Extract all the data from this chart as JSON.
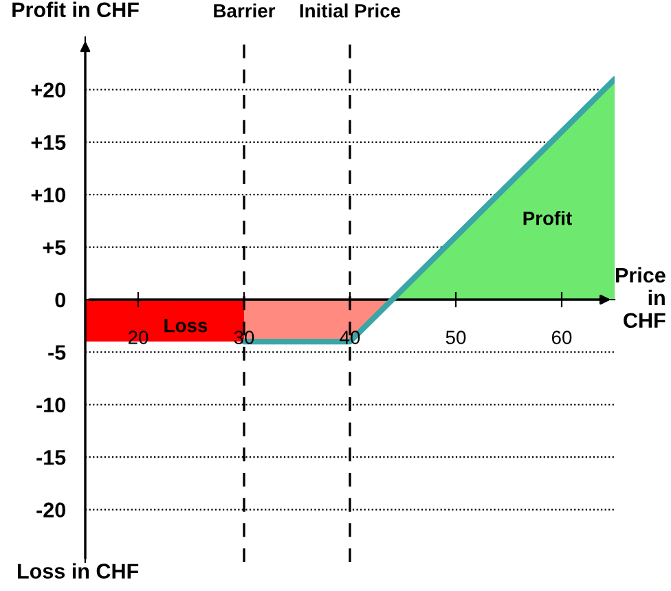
{
  "chart_data": {
    "type": "line",
    "ylabel": "Profit in CHF",
    "xlabel": "Price\nin\nCHF",
    "xlim": [
      15,
      65
    ],
    "ylim": [
      -25,
      25
    ],
    "xticks": [
      20,
      30,
      40,
      50,
      60
    ],
    "yticks": [
      {
        "value": -20,
        "label": "-20"
      },
      {
        "value": -15,
        "label": "-15"
      },
      {
        "value": -10,
        "label": "-10"
      },
      {
        "value": -5,
        "label": "-5"
      },
      {
        "value": 0,
        "label": "0"
      },
      {
        "value": 5,
        "label": "+5"
      },
      {
        "value": 10,
        "label": "+10"
      },
      {
        "value": 15,
        "label": "+15"
      },
      {
        "value": 20,
        "label": "+20"
      }
    ],
    "grid": "y",
    "series": [
      {
        "type": "area",
        "color": "#ff0000",
        "x": [
          15,
          30
        ],
        "values": [
          -4,
          -4
        ]
      },
      {
        "type": "area",
        "color": "#ff8a80",
        "x": [
          30,
          40,
          44
        ],
        "values": [
          -4,
          -4,
          0
        ]
      },
      {
        "type": "area",
        "color": "#6fe86f",
        "x": [
          44,
          65
        ],
        "values": [
          0,
          21
        ]
      },
      {
        "color": "#3aa6a6",
        "x": [
          30,
          40,
          65
        ],
        "values": [
          -4,
          -4,
          21
        ]
      }
    ],
    "ref_lines": [
      {
        "axis": "x",
        "value": 30,
        "label": "Barrier",
        "line_style": "dashed"
      },
      {
        "axis": "x",
        "value": 40,
        "label": "Initial Price",
        "line_style": "dashed"
      }
    ],
    "annotations": [
      "Loss",
      "Profit",
      "Loss in CHF"
    ]
  }
}
